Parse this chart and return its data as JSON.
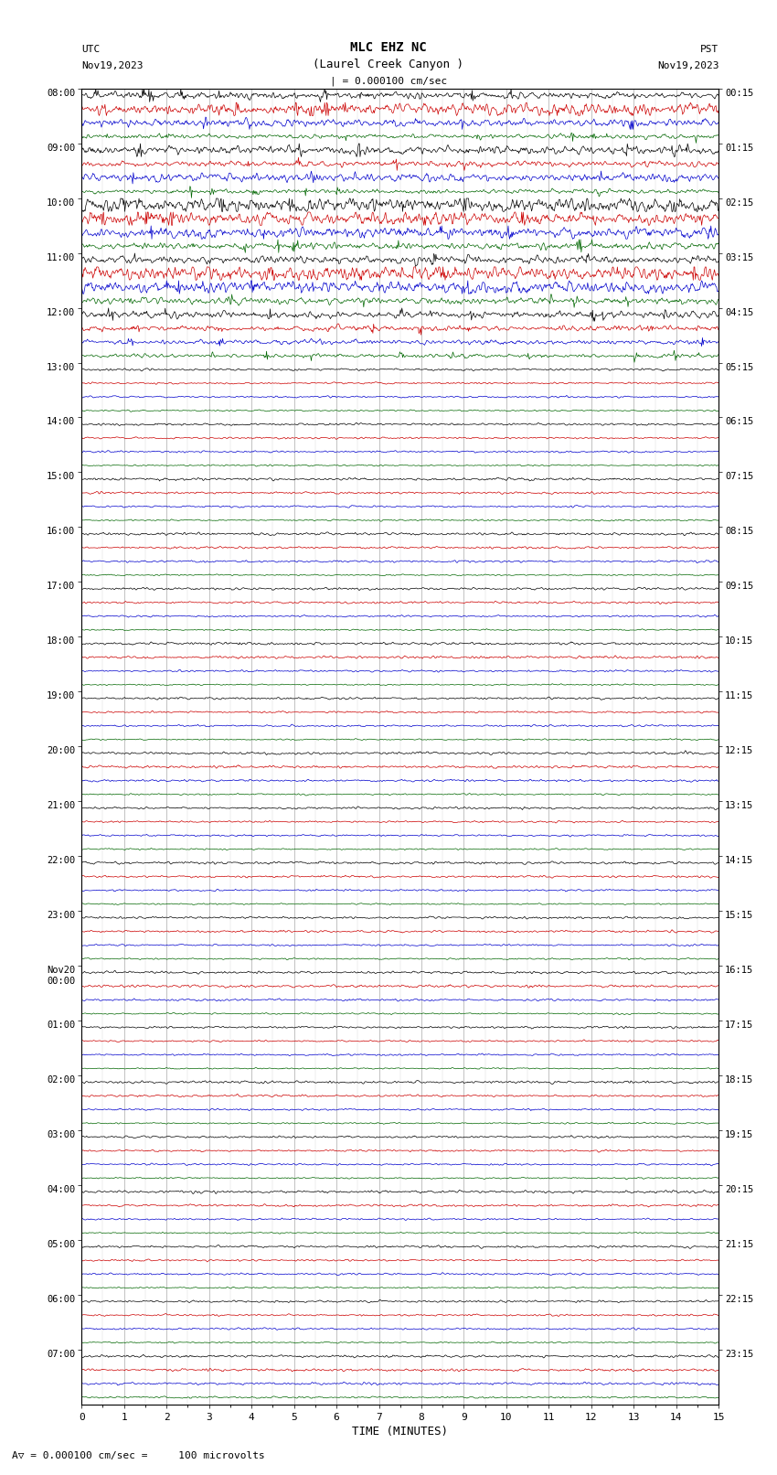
{
  "title_line1": "MLC EHZ NC",
  "title_line2": "(Laurel Creek Canyon )",
  "scale_label": "= 0.000100 cm/sec",
  "left_header_line1": "UTC",
  "left_header_line2": "Nov19,2023",
  "right_header_line1": "PST",
  "right_header_line2": "Nov19,2023",
  "xlabel": "TIME (MINUTES)",
  "bottom_label": "A = 0.000100 cm/sec =     100 microvolts",
  "x_ticks": [
    0,
    1,
    2,
    3,
    4,
    5,
    6,
    7,
    8,
    9,
    10,
    11,
    12,
    13,
    14,
    15
  ],
  "background_color": "#ffffff",
  "grid_color": "#aaaaaa",
  "trace_colors": [
    "#000000",
    "#cc0000",
    "#0000cc",
    "#006600"
  ],
  "utc_times": [
    "08:00",
    "09:00",
    "10:00",
    "11:00",
    "12:00",
    "13:00",
    "14:00",
    "15:00",
    "16:00",
    "17:00",
    "18:00",
    "19:00",
    "20:00",
    "21:00",
    "22:00",
    "23:00",
    "Nov20\n00:00",
    "01:00",
    "02:00",
    "03:00",
    "04:00",
    "05:00",
    "06:00",
    "07:00"
  ],
  "pst_times": [
    "00:15",
    "01:15",
    "02:15",
    "03:15",
    "04:15",
    "05:15",
    "06:15",
    "07:15",
    "08:15",
    "09:15",
    "10:15",
    "11:15",
    "12:15",
    "13:15",
    "14:15",
    "15:15",
    "16:15",
    "17:15",
    "18:15",
    "19:15",
    "20:15",
    "21:15",
    "22:15",
    "23:15"
  ],
  "figsize": [
    8.5,
    16.13
  ],
  "dpi": 100
}
